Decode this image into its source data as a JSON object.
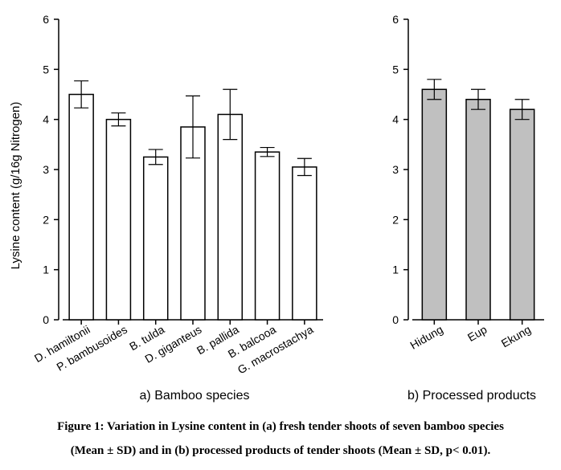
{
  "chart_data": [
    {
      "type": "bar",
      "categories": [
        "D. hamiltonii",
        "P. bambusoides",
        "B. tulda",
        "D. giganteus",
        "B. pallida",
        "B. balcooa",
        "G. macrostachya"
      ],
      "values": [
        4.5,
        4.0,
        3.25,
        3.85,
        4.1,
        3.35,
        3.05
      ],
      "error": [
        0.27,
        0.13,
        0.15,
        0.62,
        0.5,
        0.09,
        0.17
      ],
      "ylabel": "Lysine content (g/16g Nitrogen)",
      "xlabel": "a) Bamboo species",
      "ylim": [
        0,
        6
      ],
      "yticks": [
        0,
        1,
        2,
        3,
        4,
        5,
        6
      ],
      "bar_color": "#ffffff"
    },
    {
      "type": "bar",
      "categories": [
        "Hidung",
        "Eup",
        "Ekung"
      ],
      "values": [
        4.6,
        4.4,
        4.2
      ],
      "error": [
        0.2,
        0.2,
        0.2
      ],
      "xlabel": "b) Processed products",
      "ylim": [
        0,
        6
      ],
      "yticks": [
        0,
        1,
        2,
        3,
        4,
        5,
        6
      ],
      "bar_color": "#c0c0c0"
    }
  ],
  "caption": {
    "line1": "Figure 1: Variation in Lysine content in (a) fresh tender shoots of seven bamboo species",
    "line2": "(Mean ± SD) and in (b) processed products of tender shoots (Mean ± SD, p< 0.01)."
  }
}
